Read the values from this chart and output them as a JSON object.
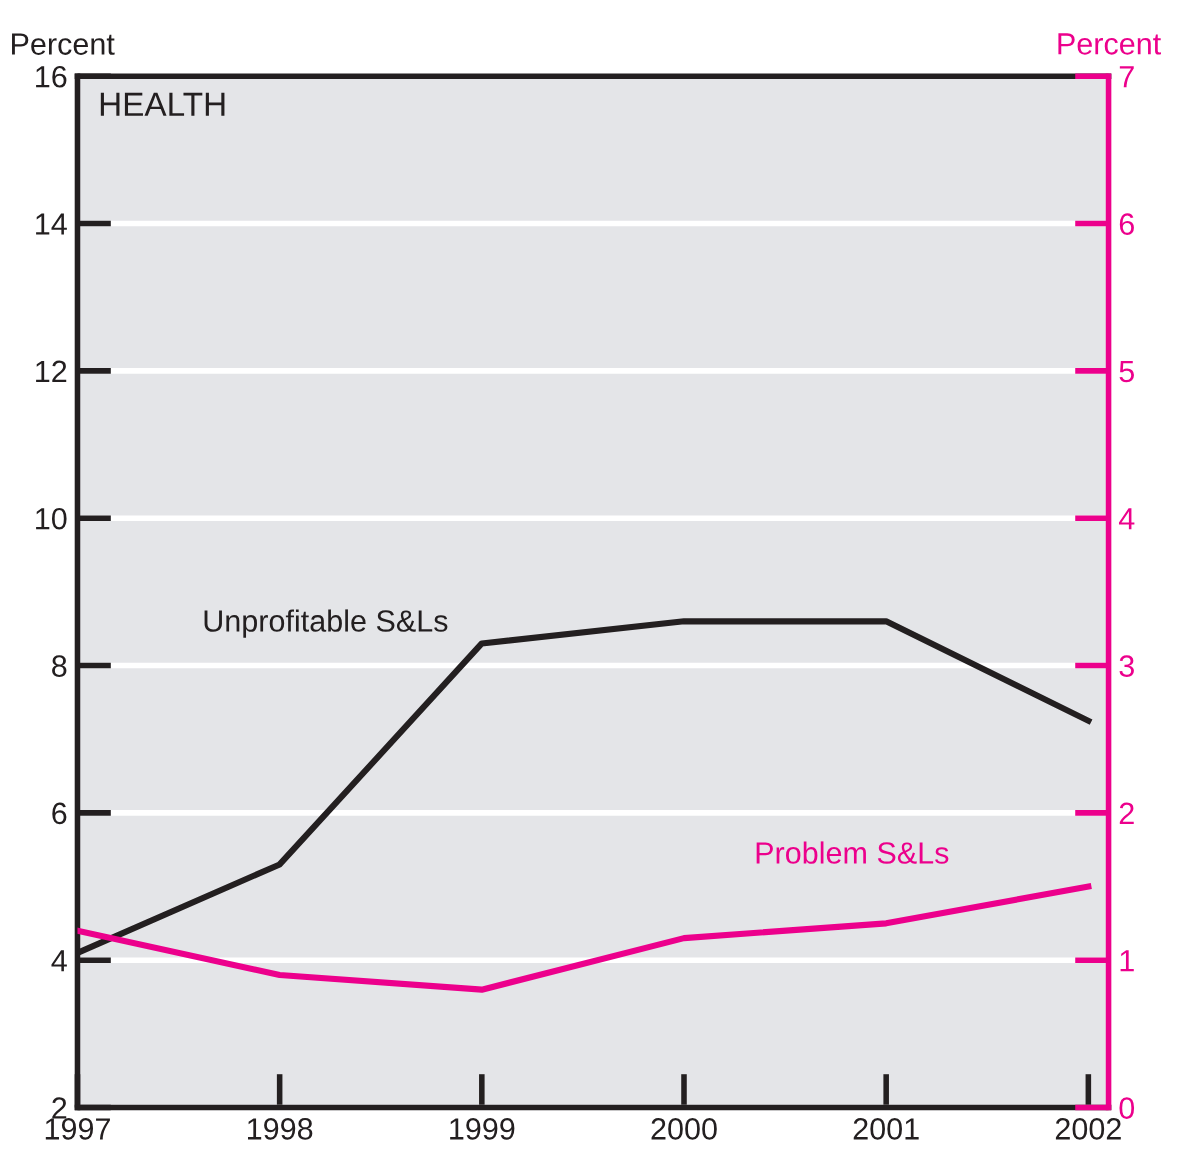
{
  "chart_data": {
    "type": "line",
    "title": "HEALTH",
    "ylabel": "Percent",
    "y2label": "Percent",
    "x": [
      1997,
      1998,
      1999,
      2000,
      2001,
      2002
    ],
    "series": [
      {
        "name": "Unprofitable S&Ls",
        "color": "#231f20",
        "values": [
          4.1,
          5.3,
          8.3,
          8.6,
          8.6,
          7.25
        ]
      },
      {
        "name": "Problem S&Ls",
        "color": "#ec008c",
        "axis": "y2",
        "values": [
          1.2,
          0.9,
          0.8,
          1.15,
          1.25,
          1.5
        ]
      }
    ],
    "xlim": [
      1997,
      2002.1
    ],
    "xticks": [
      1997,
      1998,
      1999,
      2000,
      2001,
      2002
    ],
    "ylim": [
      2,
      16
    ],
    "yticks": [
      2,
      4,
      6,
      8,
      10,
      12,
      14,
      16
    ],
    "y2lim": [
      0,
      7
    ],
    "y2ticks": [
      0,
      1,
      2,
      3,
      4,
      5,
      6,
      7
    ],
    "grid": "y",
    "legend": false,
    "marker": "none",
    "line_style": "solid"
  }
}
